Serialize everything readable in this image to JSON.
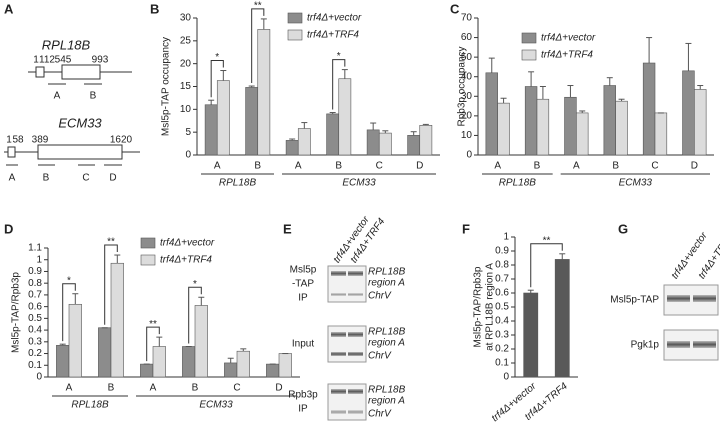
{
  "panel_letters": [
    "A",
    "B",
    "C",
    "D",
    "E",
    "F",
    "G"
  ],
  "chart_data": [
    {
      "type": "bar",
      "ylabel": "Msl5p-TAP occupancy",
      "categories": [
        "A",
        "B",
        "A",
        "B",
        "C",
        "D"
      ],
      "groups": [
        "RPL18B",
        "ECM33"
      ],
      "series": [
        {
          "name": "trf4Δ+vector",
          "color": "#8c8c8c",
          "values": [
            11,
            14.8,
            3.2,
            9,
            5.5,
            4.3
          ],
          "errors": [
            1,
            0.3,
            0.3,
            0.3,
            1.5,
            0.8
          ]
        },
        {
          "name": "trf4Δ+TRF4",
          "color": "#dcdcdc",
          "values": [
            16.3,
            27.5,
            5.8,
            16.7,
            4.8,
            6.5
          ],
          "errors": [
            2.2,
            2.3,
            1.3,
            2,
            0.5,
            0.2
          ]
        }
      ],
      "annotations": [
        "*",
        "**",
        "*"
      ],
      "ylim": [
        0,
        30
      ],
      "yticks": [
        0,
        5,
        10,
        15,
        20,
        25,
        30
      ]
    },
    {
      "type": "bar",
      "ylabel": "Rpb3p occupancy",
      "categories": [
        "A",
        "B",
        "A",
        "B",
        "C",
        "D"
      ],
      "groups": [
        "RPL18B",
        "ECM33"
      ],
      "series": [
        {
          "name": "trf4Δ+vector",
          "color": "#8c8c8c",
          "values": [
            42,
            35,
            29.5,
            35.5,
            47,
            43
          ],
          "errors": [
            7.5,
            7.5,
            6,
            4,
            13,
            14
          ]
        },
        {
          "name": "trf4Δ+TRF4",
          "color": "#dcdcdc",
          "values": [
            26.5,
            28.5,
            21.5,
            27.5,
            21.5,
            33.5
          ],
          "errors": [
            2.5,
            6.5,
            1,
            1,
            0,
            2
          ]
        }
      ],
      "annotations": [],
      "ylim": [
        0,
        70
      ],
      "yticks": [
        0,
        10,
        20,
        30,
        40,
        50,
        60,
        70
      ]
    },
    {
      "type": "bar",
      "ylabel": "Msl5p-TAP/Rpb3p",
      "categories": [
        "A",
        "B",
        "A",
        "B",
        "C",
        "D"
      ],
      "groups": [
        "RPL18B",
        "ECM33"
      ],
      "series": [
        {
          "name": "trf4Δ+vector",
          "color": "#8c8c8c",
          "values": [
            0.27,
            0.42,
            0.11,
            0.26,
            0.12,
            0.11
          ],
          "errors": [
            0.01,
            0,
            0,
            0,
            0.04,
            0
          ]
        },
        {
          "name": "trf4Δ+TRF4",
          "color": "#dcdcdc",
          "values": [
            0.62,
            0.97,
            0.26,
            0.61,
            0.22,
            0.2
          ],
          "errors": [
            0.09,
            0.07,
            0.08,
            0.07,
            0.02,
            0
          ]
        }
      ],
      "annotations": [
        "*",
        "**",
        "**",
        "*"
      ],
      "ylim": [
        0,
        1.1
      ],
      "yticks": [
        0,
        0.1,
        0.2,
        0.3,
        0.4,
        0.5,
        0.6,
        0.7,
        0.8,
        0.9,
        1,
        1.1
      ]
    },
    {
      "type": "bar",
      "ylabel": [
        "Msl5p-TAP/Rpb3p",
        "at RPL18B region A"
      ],
      "categories": [
        "trf4Δ+vector",
        "trf4Δ+TRF4"
      ],
      "series": [
        {
          "color": "#595959",
          "values": [
            0.6,
            0.84
          ],
          "errors": [
            0.02,
            0.04
          ]
        }
      ],
      "annotations": [
        "**"
      ],
      "ylim": [
        0,
        1
      ],
      "yticks": [
        0,
        0.1,
        0.2,
        0.3,
        0.4,
        0.5,
        0.6,
        0.7,
        0.8,
        0.9,
        1
      ]
    }
  ],
  "gene_maps": [
    {
      "name": "RPL18B",
      "positions": [
        "1",
        "112",
        "545",
        "993"
      ],
      "regions": [
        "A",
        "B"
      ]
    },
    {
      "name": "ECM33",
      "positions": [
        "1",
        "58",
        "389",
        "1620"
      ],
      "regions": [
        "A",
        "B",
        "C",
        "D"
      ]
    }
  ],
  "blot_e": {
    "lanes": [
      "trf4Δ+vector",
      "trf4Δ+TRF4"
    ],
    "rows": [
      {
        "label": [
          "Msl5p",
          "-TAP",
          "IP"
        ]
      },
      {
        "label": [
          "Input"
        ]
      },
      {
        "label": [
          "Rpb3p",
          "IP"
        ]
      }
    ],
    "bands": [
      "RPL18B",
      "region A",
      "ChrV"
    ]
  },
  "blot_g": {
    "lanes": [
      "trf4Δ+vector",
      "trf4Δ+TRF4"
    ],
    "rows": [
      "Msl5p-TAP",
      "Pgk1p"
    ]
  }
}
